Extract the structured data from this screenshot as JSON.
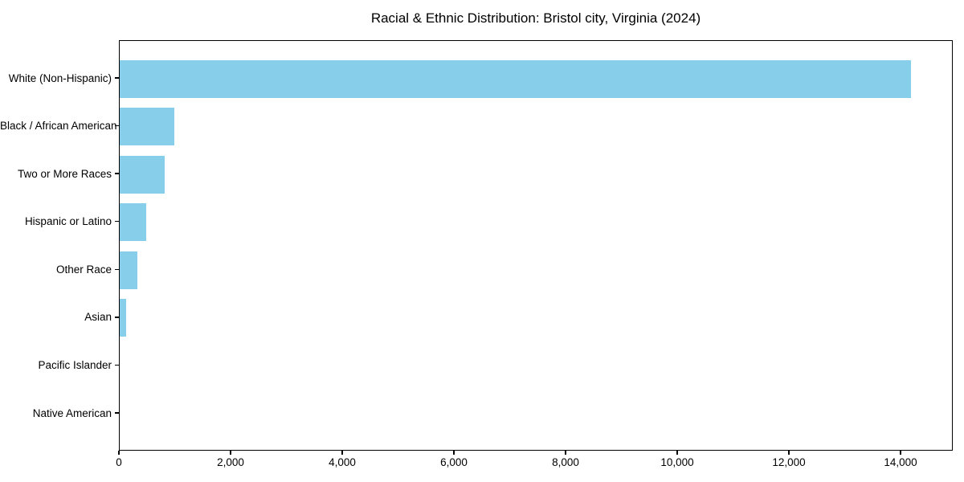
{
  "chart_data": {
    "type": "bar",
    "orientation": "horizontal",
    "title": "Racial & Ethnic Distribution: Bristol city, Virginia (2024)",
    "categories": [
      "White (Non-Hispanic)",
      "Black / African American",
      "Two or More Races",
      "Hispanic or Latino",
      "Other Race",
      "Asian",
      "Pacific Islander",
      "Native American"
    ],
    "values": [
      14200,
      980,
      805,
      475,
      310,
      110,
      0,
      0
    ],
    "bar_color": "#87CEEB",
    "text_color": "#000000",
    "background_color": "#ffffff",
    "xlabel": "",
    "ylabel": "",
    "xlim": [
      0,
      14935
    ],
    "xtick_values": [
      0,
      2000,
      4000,
      6000,
      8000,
      10000,
      12000,
      14000
    ],
    "xtick_labels": [
      "0",
      "2,000",
      "4,000",
      "6,000",
      "8,000",
      "10,000",
      "12,000",
      "14,000"
    ],
    "grid": false,
    "legend_position": "none"
  }
}
